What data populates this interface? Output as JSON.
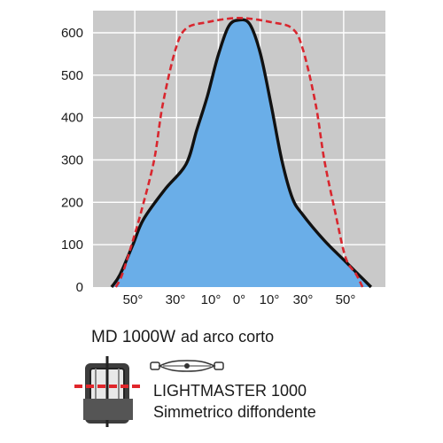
{
  "chart_data": {
    "type": "area",
    "title": "",
    "xlabel": "",
    "ylabel": "",
    "ylim": [
      0,
      650
    ],
    "yticks": [
      0,
      100,
      200,
      300,
      400,
      500,
      600
    ],
    "x_range": [
      -65,
      65
    ],
    "x_ticks": [
      {
        "value": -50,
        "label": "50°"
      },
      {
        "value": -30,
        "label": "30°"
      },
      {
        "value": -10,
        "label": "10°"
      },
      {
        "value": 0,
        "label": "0°"
      },
      {
        "value": 10,
        "label": "10°"
      },
      {
        "value": 30,
        "label": "30°"
      },
      {
        "value": 50,
        "label": "50°"
      }
    ],
    "grid": true,
    "series": [
      {
        "style": "solid-filled",
        "color": "#111111",
        "fill": "#6aaee8",
        "points": [
          {
            "x": -60,
            "y": 0
          },
          {
            "x": -56,
            "y": 30
          },
          {
            "x": -50,
            "y": 100
          },
          {
            "x": -45,
            "y": 160
          },
          {
            "x": -35,
            "y": 230
          },
          {
            "x": -25,
            "y": 290
          },
          {
            "x": -20,
            "y": 370
          },
          {
            "x": -15,
            "y": 450
          },
          {
            "x": -10,
            "y": 545
          },
          {
            "x": -5,
            "y": 615
          },
          {
            "x": 0,
            "y": 630
          },
          {
            "x": 5,
            "y": 620
          },
          {
            "x": 10,
            "y": 550
          },
          {
            "x": 15,
            "y": 430
          },
          {
            "x": 20,
            "y": 300
          },
          {
            "x": 25,
            "y": 210
          },
          {
            "x": 30,
            "y": 170
          },
          {
            "x": 40,
            "y": 110
          },
          {
            "x": 50,
            "y": 60
          },
          {
            "x": 55,
            "y": 35
          },
          {
            "x": 62,
            "y": 0
          }
        ]
      },
      {
        "style": "dashed",
        "color": "#d9262e",
        "points": [
          {
            "x": -58,
            "y": 0
          },
          {
            "x": -55,
            "y": 30
          },
          {
            "x": -50,
            "y": 110
          },
          {
            "x": -46,
            "y": 180
          },
          {
            "x": -40,
            "y": 300
          },
          {
            "x": -36,
            "y": 430
          },
          {
            "x": -30,
            "y": 560
          },
          {
            "x": -25,
            "y": 610
          },
          {
            "x": -15,
            "y": 625
          },
          {
            "x": 0,
            "y": 635
          },
          {
            "x": 15,
            "y": 625
          },
          {
            "x": 25,
            "y": 610
          },
          {
            "x": 30,
            "y": 560
          },
          {
            "x": 36,
            "y": 430
          },
          {
            "x": 40,
            "y": 300
          },
          {
            "x": 45,
            "y": 180
          },
          {
            "x": 50,
            "y": 70
          },
          {
            "x": 55,
            "y": 30
          },
          {
            "x": 58,
            "y": 0
          }
        ]
      }
    ]
  },
  "caption": {
    "model": "MD 1000W",
    "model_sub": "ad arco corto",
    "product_line1": "LIGHTMASTER 1000",
    "product_line2": "Simmetrico diffondente"
  },
  "icons": {
    "fixture": "floodlight-fixture-icon",
    "lamp": "double-ended-lamp-icon"
  },
  "colors": {
    "plot_bg": "#c9c9c9",
    "fill": "#6aaee8",
    "dashed": "#d9262e",
    "fixture_marker": "#e0262b"
  }
}
